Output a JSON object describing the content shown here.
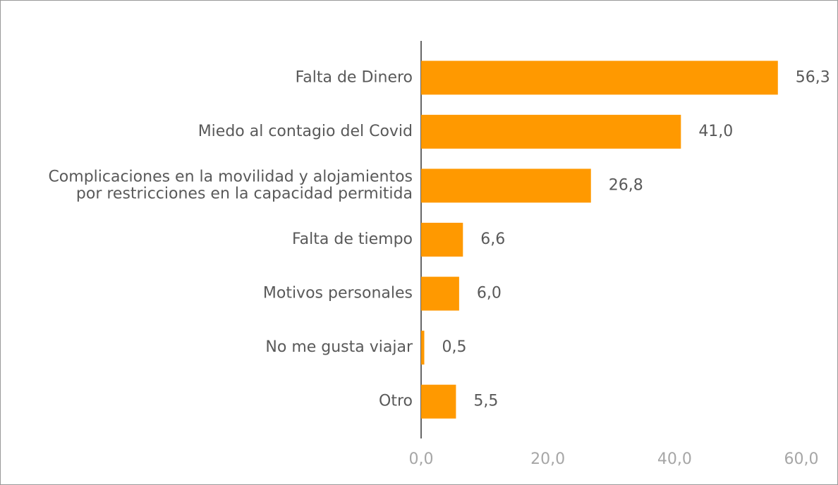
{
  "chart_data": {
    "type": "bar",
    "orientation": "horizontal",
    "categories": [
      "Falta de Dinero",
      "Miedo al contagio del Covid",
      "Complicaciones en la movilidad y alojamientos\npor restricciones en la capacidad permitida",
      "Falta de tiempo",
      "Motivos personales",
      "No me gusta viajar",
      "Otro"
    ],
    "values": [
      56.3,
      41.0,
      26.8,
      6.6,
      6.0,
      0.5,
      5.5
    ],
    "value_labels": [
      "56,3",
      "41,0",
      "26,8",
      "6,6",
      "6,0",
      "0,5",
      "5,5"
    ],
    "color": "#ff9900",
    "xlim": [
      0,
      60
    ],
    "xticks": [
      {
        "value": 0,
        "label": "0,0"
      },
      {
        "value": 20,
        "label": "20,0"
      },
      {
        "value": 40,
        "label": "40,0"
      },
      {
        "value": 60,
        "label": "60,0"
      }
    ],
    "grid": false
  }
}
